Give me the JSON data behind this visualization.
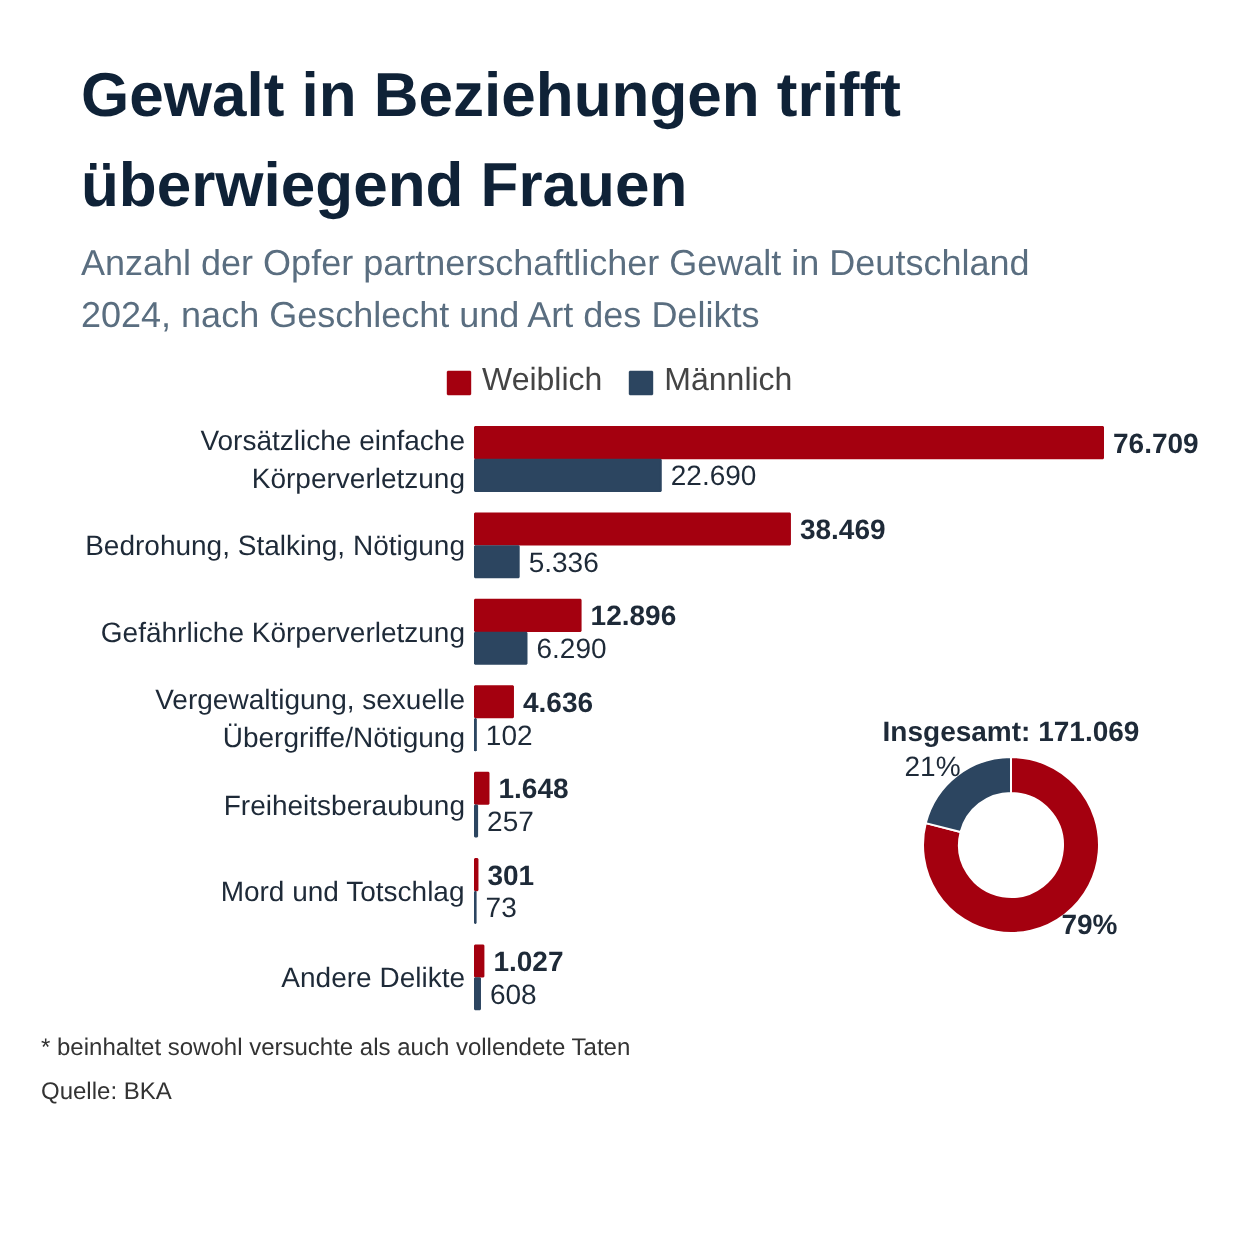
{
  "chart_data": [
    {
      "type": "bar",
      "orientation": "horizontal",
      "title": "Gewalt in Beziehungen trifft überwiegend Frauen",
      "subtitle": "Anzahl der Opfer partnerschaftlicher Gewalt in Deutschland 2024, nach Geschlecht und Art des Delikts",
      "categories": [
        "Vorsätzliche einfache Körperverletzung",
        "Bedrohung, Stalking, Nötigung",
        "Gefährliche Körperverletzung",
        "Vergewaltigung, sexuelle Übergriffe/Nötigung",
        "Freiheitsberaubung",
        "Mord und Totschlag",
        "Andere Delikte"
      ],
      "series": [
        {
          "name": "Weiblich",
          "color": "#a4000f",
          "values": [
            76709,
            38469,
            12896,
            4636,
            1648,
            301,
            1027
          ],
          "value_labels": [
            "76.709",
            "38.469",
            "12.896",
            "4.636",
            "1.648",
            "301",
            "1.027"
          ]
        },
        {
          "name": "Männlich",
          "color": "#2c4560",
          "values": [
            22690,
            5336,
            6290,
            102,
            257,
            73,
            608
          ],
          "value_labels": [
            "22.690",
            "5.336",
            "6.290",
            "102",
            "257",
            "73",
            "608"
          ]
        }
      ],
      "legend": "top",
      "tick_labels": "y",
      "annotations": [
        "* beinhaltet sowohl versuchte als auch vollendete Taten",
        "Quelle: BKA"
      ]
    },
    {
      "type": "donut",
      "title": "Insgesamt: 171.069",
      "categories": [
        null,
        null
      ],
      "values": [
        79,
        21
      ],
      "colors": [
        "#a4000f",
        "#2c4560"
      ],
      "value_labels": [
        "79%",
        "21%"
      ]
    }
  ]
}
